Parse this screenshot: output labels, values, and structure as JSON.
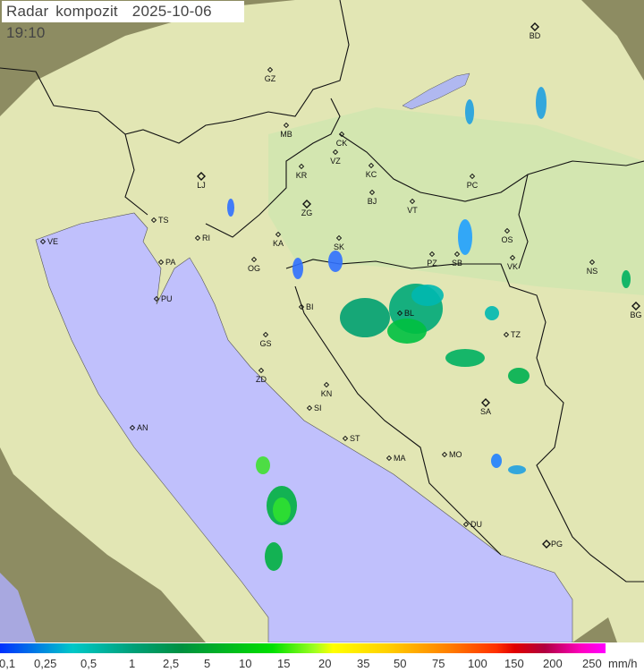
{
  "title": {
    "label": "Radar kompozit",
    "date": "2025-10-06",
    "time": "19:10"
  },
  "legend": {
    "unit": "mm/h",
    "ticks": [
      "0,1",
      "0,25",
      "0,5",
      "1",
      "2,5",
      "5",
      "10",
      "15",
      "20",
      "35",
      "50",
      "75",
      "100",
      "150",
      "200",
      "250"
    ]
  },
  "colors": {
    "sea": "#c0c0fc",
    "land": "#d8e8b0",
    "outside": "#8a8a60"
  },
  "cities": [
    {
      "code": "BD",
      "capital": true
    },
    {
      "code": "GZ"
    },
    {
      "code": "MB"
    },
    {
      "code": "CK"
    },
    {
      "code": "VZ"
    },
    {
      "code": "KR"
    },
    {
      "code": "KC"
    },
    {
      "code": "PC"
    },
    {
      "code": "LJ",
      "capital": true
    },
    {
      "code": "BJ"
    },
    {
      "code": "ZG",
      "capital": true
    },
    {
      "code": "VT"
    },
    {
      "code": "TS"
    },
    {
      "code": "VE"
    },
    {
      "code": "RI"
    },
    {
      "code": "KA"
    },
    {
      "code": "SK"
    },
    {
      "code": "OS"
    },
    {
      "code": "PA"
    },
    {
      "code": "OG"
    },
    {
      "code": "PZ"
    },
    {
      "code": "SB"
    },
    {
      "code": "VK"
    },
    {
      "code": "NS"
    },
    {
      "code": "PU"
    },
    {
      "code": "BI"
    },
    {
      "code": "BL"
    },
    {
      "code": "BG",
      "capital": true
    },
    {
      "code": "GS"
    },
    {
      "code": "TZ"
    },
    {
      "code": "ZD"
    },
    {
      "code": "KN"
    },
    {
      "code": "SA",
      "capital": true
    },
    {
      "code": "SI"
    },
    {
      "code": "AN"
    },
    {
      "code": "ST"
    },
    {
      "code": "MA"
    },
    {
      "code": "MO"
    },
    {
      "code": "DU"
    },
    {
      "code": "PG",
      "capital": true
    }
  ]
}
